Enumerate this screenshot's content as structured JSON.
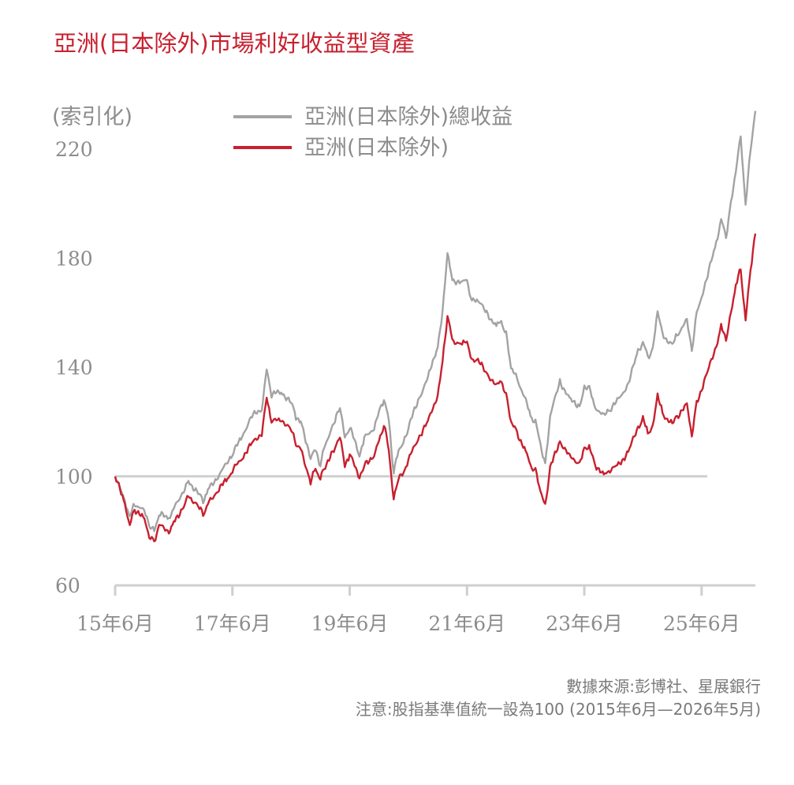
{
  "colors": {
    "title": "#c8202f",
    "series_total_return": "#a3a3a3",
    "series_price": "#c8202f",
    "baseline": "#cfcfcf",
    "axis": "#cfcfcf",
    "text": "#8c8c8c"
  },
  "chart_data": {
    "type": "line",
    "title": "亞洲(日本除外)市場利好收益型資產",
    "ylabel": "(索引化)",
    "ylim": [
      60,
      220
    ],
    "yticks": [
      "60",
      "100",
      "140",
      "180",
      "220"
    ],
    "xlim": [
      "2015-06",
      "2026-05"
    ],
    "xticks": [
      {
        "date": "2015-06",
        "label": "15年6月"
      },
      {
        "date": "2017-06",
        "label": "17年6月"
      },
      {
        "date": "2019-06",
        "label": "19年6月"
      },
      {
        "date": "2021-06",
        "label": "21年6月"
      },
      {
        "date": "2023-06",
        "label": "23年6月"
      },
      {
        "date": "2025-06",
        "label": "25年6月"
      }
    ],
    "legend_position": "top",
    "baseline": 100,
    "series": [
      {
        "name": "亞洲(日本除外)總收益",
        "color": "#a3a3a3",
        "points": [
          [
            "2015-06",
            100
          ],
          [
            "2015-08",
            91
          ],
          [
            "2015-09",
            85
          ],
          [
            "2015-10",
            90
          ],
          [
            "2015-12",
            87
          ],
          [
            "2016-01",
            82
          ],
          [
            "2016-02",
            80
          ],
          [
            "2016-03",
            86
          ],
          [
            "2016-05",
            85
          ],
          [
            "2016-06",
            88
          ],
          [
            "2016-08",
            95
          ],
          [
            "2016-09",
            98
          ],
          [
            "2016-11",
            94
          ],
          [
            "2016-12",
            91
          ],
          [
            "2017-01",
            95
          ],
          [
            "2017-03",
            100
          ],
          [
            "2017-05",
            105
          ],
          [
            "2017-06",
            108
          ],
          [
            "2017-08",
            115
          ],
          [
            "2017-10",
            122
          ],
          [
            "2017-12",
            125
          ],
          [
            "2018-01",
            139
          ],
          [
            "2018-02",
            130
          ],
          [
            "2018-04",
            131
          ],
          [
            "2018-06",
            127
          ],
          [
            "2018-07",
            122
          ],
          [
            "2018-08",
            120
          ],
          [
            "2018-10",
            107
          ],
          [
            "2018-11",
            110
          ],
          [
            "2018-12",
            104
          ],
          [
            "2019-01",
            112
          ],
          [
            "2019-03",
            120
          ],
          [
            "2019-04",
            126
          ],
          [
            "2019-05",
            114
          ],
          [
            "2019-06",
            118
          ],
          [
            "2019-08",
            108
          ],
          [
            "2019-09",
            114
          ],
          [
            "2019-11",
            118
          ],
          [
            "2019-12",
            124
          ],
          [
            "2020-01",
            128
          ],
          [
            "2020-02",
            121
          ],
          [
            "2020-03",
            101
          ],
          [
            "2020-04",
            110
          ],
          [
            "2020-05",
            112
          ],
          [
            "2020-06",
            118
          ],
          [
            "2020-08",
            128
          ],
          [
            "2020-10",
            136
          ],
          [
            "2020-12",
            148
          ],
          [
            "2021-01",
            160
          ],
          [
            "2021-02",
            182
          ],
          [
            "2021-03",
            172
          ],
          [
            "2021-05",
            171
          ],
          [
            "2021-06",
            172
          ],
          [
            "2021-07",
            164
          ],
          [
            "2021-08",
            165
          ],
          [
            "2021-10",
            160
          ],
          [
            "2021-12",
            155
          ],
          [
            "2022-01",
            157
          ],
          [
            "2022-02",
            152
          ],
          [
            "2022-03",
            140
          ],
          [
            "2022-04",
            137
          ],
          [
            "2022-06",
            128
          ],
          [
            "2022-07",
            122
          ],
          [
            "2022-08",
            120
          ],
          [
            "2022-09",
            112
          ],
          [
            "2022-10",
            104
          ],
          [
            "2022-11",
            122
          ],
          [
            "2023-01",
            135
          ],
          [
            "2023-03",
            128
          ],
          [
            "2023-05",
            126
          ],
          [
            "2023-06",
            132
          ],
          [
            "2023-07",
            133
          ],
          [
            "2023-08",
            126
          ],
          [
            "2023-10",
            122
          ],
          [
            "2023-11",
            124
          ],
          [
            "2024-01",
            128
          ],
          [
            "2024-03",
            134
          ],
          [
            "2024-05",
            146
          ],
          [
            "2024-06",
            149
          ],
          [
            "2024-07",
            144
          ],
          [
            "2024-08",
            146
          ],
          [
            "2024-09",
            161
          ],
          [
            "2024-10",
            152
          ],
          [
            "2024-12",
            148
          ],
          [
            "2025-01",
            152
          ],
          [
            "2025-03",
            157
          ],
          [
            "2025-04",
            146
          ],
          [
            "2025-05",
            160
          ],
          [
            "2025-07",
            172
          ],
          [
            "2025-09",
            186
          ],
          [
            "2025-10",
            194
          ],
          [
            "2025-11",
            188
          ],
          [
            "2025-12",
            200
          ],
          [
            "2026-01",
            212
          ],
          [
            "2026-02",
            225
          ],
          [
            "2026-03",
            199
          ],
          [
            "2026-04",
            220
          ],
          [
            "2026-05",
            234
          ]
        ]
      },
      {
        "name": "亞洲(日本除外)",
        "color": "#c8202f",
        "points": [
          [
            "2015-06",
            100
          ],
          [
            "2015-08",
            90
          ],
          [
            "2015-09",
            82
          ],
          [
            "2015-10",
            88
          ],
          [
            "2015-12",
            84
          ],
          [
            "2016-01",
            78
          ],
          [
            "2016-02",
            76
          ],
          [
            "2016-03",
            82
          ],
          [
            "2016-05",
            80
          ],
          [
            "2016-06",
            83
          ],
          [
            "2016-08",
            89
          ],
          [
            "2016-09",
            93
          ],
          [
            "2016-11",
            89
          ],
          [
            "2016-12",
            86
          ],
          [
            "2017-01",
            90
          ],
          [
            "2017-03",
            95
          ],
          [
            "2017-05",
            99
          ],
          [
            "2017-06",
            102
          ],
          [
            "2017-08",
            107
          ],
          [
            "2017-10",
            112
          ],
          [
            "2017-12",
            116
          ],
          [
            "2018-01",
            129
          ],
          [
            "2018-02",
            120
          ],
          [
            "2018-04",
            121
          ],
          [
            "2018-06",
            117
          ],
          [
            "2018-07",
            112
          ],
          [
            "2018-08",
            110
          ],
          [
            "2018-10",
            98
          ],
          [
            "2018-11",
            103
          ],
          [
            "2018-12",
            99
          ],
          [
            "2019-01",
            104
          ],
          [
            "2019-03",
            110
          ],
          [
            "2019-04",
            115
          ],
          [
            "2019-05",
            104
          ],
          [
            "2019-06",
            108
          ],
          [
            "2019-08",
            100
          ],
          [
            "2019-09",
            104
          ],
          [
            "2019-11",
            108
          ],
          [
            "2019-12",
            113
          ],
          [
            "2020-01",
            119
          ],
          [
            "2020-02",
            110
          ],
          [
            "2020-03",
            91
          ],
          [
            "2020-04",
            100
          ],
          [
            "2020-05",
            101
          ],
          [
            "2020-06",
            106
          ],
          [
            "2020-08",
            114
          ],
          [
            "2020-10",
            120
          ],
          [
            "2020-12",
            130
          ],
          [
            "2021-01",
            142
          ],
          [
            "2021-02",
            159
          ],
          [
            "2021-03",
            150
          ],
          [
            "2021-05",
            148
          ],
          [
            "2021-06",
            150
          ],
          [
            "2021-07",
            142
          ],
          [
            "2021-08",
            143
          ],
          [
            "2021-10",
            138
          ],
          [
            "2021-12",
            133
          ],
          [
            "2022-01",
            135
          ],
          [
            "2022-02",
            130
          ],
          [
            "2022-03",
            120
          ],
          [
            "2022-04",
            117
          ],
          [
            "2022-06",
            109
          ],
          [
            "2022-07",
            104
          ],
          [
            "2022-08",
            102
          ],
          [
            "2022-09",
            95
          ],
          [
            "2022-10",
            89
          ],
          [
            "2022-11",
            103
          ],
          [
            "2023-01",
            113
          ],
          [
            "2023-03",
            107
          ],
          [
            "2023-05",
            105
          ],
          [
            "2023-06",
            110
          ],
          [
            "2023-07",
            111
          ],
          [
            "2023-08",
            105
          ],
          [
            "2023-10",
            100
          ],
          [
            "2023-11",
            102
          ],
          [
            "2024-01",
            104
          ],
          [
            "2024-03",
            109
          ],
          [
            "2024-05",
            118
          ],
          [
            "2024-06",
            121
          ],
          [
            "2024-07",
            116
          ],
          [
            "2024-08",
            118
          ],
          [
            "2024-09",
            130
          ],
          [
            "2024-10",
            123
          ],
          [
            "2024-12",
            119
          ],
          [
            "2025-01",
            122
          ],
          [
            "2025-03",
            126
          ],
          [
            "2025-04",
            115
          ],
          [
            "2025-05",
            127
          ],
          [
            "2025-07",
            137
          ],
          [
            "2025-09",
            148
          ],
          [
            "2025-10",
            155
          ],
          [
            "2025-11",
            150
          ],
          [
            "2025-12",
            160
          ],
          [
            "2026-01",
            170
          ],
          [
            "2026-02",
            176
          ],
          [
            "2026-03",
            157
          ],
          [
            "2026-04",
            176
          ],
          [
            "2026-05",
            189
          ]
        ]
      }
    ],
    "notes": [
      "數據來源:彭博社、星展銀行",
      "注意:股指基準值統一設為100 (2015年6月—2026年5月)"
    ]
  }
}
